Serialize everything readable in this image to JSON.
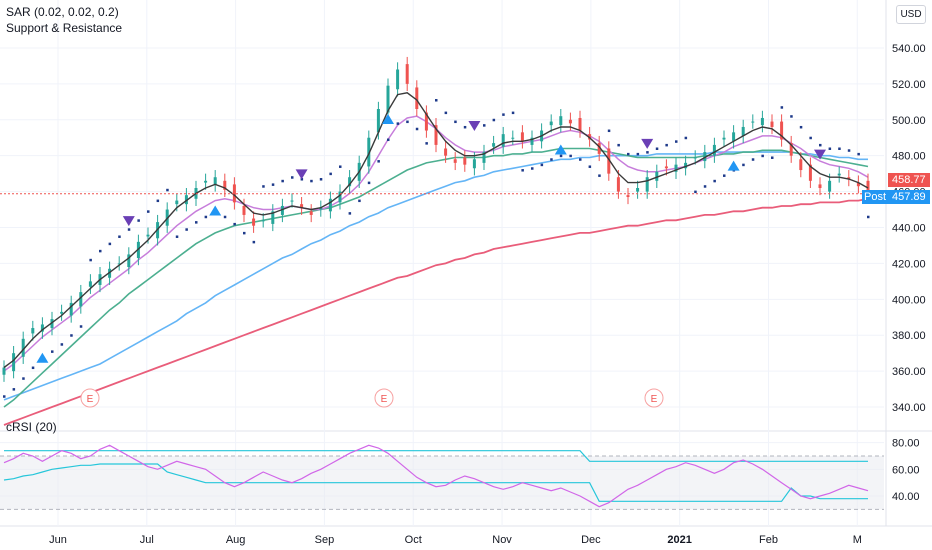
{
  "legend": {
    "sar": "SAR (0.02, 0.02, 0.2)",
    "sr": "Support & Resistance",
    "crsi": "cRSI (20)"
  },
  "currency": "USD",
  "price_tags": {
    "last": "458.77",
    "post_label": "Post",
    "post": "457.89"
  },
  "earnings_marker": "E",
  "colors": {
    "up": "#26a69a",
    "down": "#ef5350",
    "sar": "#1e3a8a",
    "ma_fast": "#3a3a3a",
    "ma_purple": "#c77ddb",
    "ma_green": "#4caf90",
    "ma_blue": "#64b5f6",
    "ma_red": "#e95d7a",
    "marker_down": "#6a3fb5",
    "marker_up": "#2196f3",
    "crsi_line": "#d166e8",
    "crsi_band": "#26c6da",
    "grid": "#f0f3fa",
    "axis_text": "#131722"
  },
  "chart_data": [
    {
      "type": "candlestick",
      "title": "",
      "ylim": [
        330,
        550
      ],
      "y_ticks": [
        "540.00",
        "520.00",
        "500.00",
        "480.00",
        "460.00",
        "440.00",
        "420.00",
        "400.00",
        "380.00",
        "360.00",
        "340.00"
      ],
      "x_ticks": [
        "Jun",
        "Jul",
        "Aug",
        "Sep",
        "Oct",
        "Nov",
        "Dec",
        "2021",
        "Feb",
        "M"
      ],
      "grid": true,
      "last_price": 458.77,
      "post_price": 457.89,
      "close_series": [
        362,
        370,
        378,
        384,
        386,
        389,
        393,
        398,
        404,
        410,
        414,
        417,
        420,
        425,
        432,
        436,
        443,
        450,
        455,
        458,
        462,
        466,
        468,
        461,
        454,
        447,
        441,
        444,
        449,
        452,
        455,
        451,
        447,
        451,
        456,
        460,
        468,
        476,
        490,
        506,
        519,
        528,
        520,
        506,
        494,
        486,
        480,
        476,
        475,
        478,
        482,
        487,
        492,
        490,
        488,
        490,
        494,
        499,
        502,
        498,
        494,
        489,
        481,
        470,
        460,
        457,
        462,
        468,
        471,
        473,
        475,
        476,
        479,
        482,
        486,
        490,
        493,
        496,
        499,
        501,
        496,
        489,
        480,
        472,
        466,
        462,
        466,
        470,
        467,
        463,
        459
      ],
      "sma_fast": [
        362,
        366,
        372,
        378,
        383,
        387,
        391,
        396,
        401,
        406,
        411,
        415,
        419,
        423,
        428,
        433,
        439,
        445,
        451,
        455,
        459,
        462,
        464,
        462,
        458,
        453,
        448,
        447,
        448,
        450,
        452,
        451,
        450,
        451,
        454,
        458,
        464,
        471,
        481,
        493,
        505,
        514,
        515,
        511,
        503,
        495,
        488,
        483,
        480,
        480,
        481,
        484,
        487,
        488,
        488,
        489,
        491,
        494,
        496,
        496,
        494,
        490,
        485,
        478,
        470,
        465,
        465,
        466,
        468,
        470,
        472,
        474,
        476,
        479,
        482,
        485,
        488,
        491,
        494,
        496,
        495,
        491,
        486,
        480,
        474,
        470,
        468,
        468,
        467,
        465,
        462
      ],
      "sma_purple": [
        360,
        364,
        369,
        374,
        379,
        383,
        387,
        391,
        396,
        401,
        405,
        409,
        413,
        417,
        422,
        426,
        431,
        436,
        441,
        445,
        449,
        452,
        455,
        456,
        455,
        453,
        451,
        450,
        450,
        451,
        452,
        451,
        450,
        450,
        452,
        455,
        459,
        464,
        471,
        480,
        489,
        497,
        501,
        502,
        499,
        495,
        490,
        486,
        483,
        482,
        482,
        483,
        485,
        486,
        487,
        488,
        489,
        491,
        493,
        494,
        493,
        491,
        488,
        483,
        478,
        474,
        472,
        471,
        471,
        472,
        473,
        474,
        476,
        478,
        480,
        482,
        485,
        487,
        489,
        491,
        491,
        490,
        487,
        484,
        480,
        477,
        475,
        474,
        473,
        471,
        468
      ],
      "sma_green": [
        340,
        344,
        349,
        354,
        359,
        364,
        369,
        374,
        379,
        384,
        389,
        394,
        398,
        403,
        407,
        411,
        415,
        419,
        423,
        427,
        431,
        434,
        437,
        439,
        441,
        442,
        443,
        444,
        445,
        446,
        447,
        448,
        449,
        450,
        451,
        453,
        455,
        457,
        460,
        463,
        466,
        469,
        472,
        474,
        476,
        477,
        478,
        479,
        479,
        479,
        479,
        480,
        480,
        481,
        481,
        482,
        482,
        483,
        484,
        484,
        484,
        484,
        483,
        482,
        481,
        480,
        479,
        479,
        479,
        479,
        479,
        479,
        479,
        480,
        480,
        481,
        481,
        482,
        482,
        483,
        483,
        483,
        482,
        481,
        480,
        479,
        478,
        477,
        476,
        475,
        474
      ],
      "sma_blue": [
        344,
        346,
        348,
        350,
        352,
        354,
        356,
        358,
        360,
        362,
        364,
        367,
        370,
        373,
        376,
        379,
        382,
        385,
        388,
        392,
        395,
        398,
        402,
        405,
        408,
        411,
        414,
        417,
        420,
        423,
        425,
        428,
        431,
        433,
        436,
        438,
        441,
        443,
        446,
        448,
        451,
        453,
        455,
        457,
        459,
        461,
        463,
        465,
        466,
        468,
        469,
        471,
        472,
        473,
        474,
        475,
        476,
        477,
        478,
        478,
        479,
        479,
        480,
        480,
        480,
        480,
        480,
        480,
        481,
        481,
        481,
        481,
        481,
        481,
        482,
        482,
        482,
        482,
        482,
        482,
        482,
        482,
        482,
        481,
        481,
        480,
        480,
        479,
        479,
        478,
        478
      ],
      "sma_red": [
        330,
        332,
        334,
        336,
        338,
        340,
        342,
        344,
        346,
        348,
        350,
        352,
        354,
        356,
        358,
        360,
        362,
        364,
        366,
        368,
        370,
        372,
        374,
        376,
        378,
        380,
        382,
        384,
        386,
        388,
        390,
        392,
        394,
        396,
        398,
        400,
        402,
        404,
        406,
        408,
        410,
        412,
        413,
        415,
        417,
        419,
        420,
        422,
        423,
        425,
        426,
        428,
        429,
        430,
        431,
        432,
        433,
        434,
        435,
        436,
        437,
        437,
        438,
        439,
        440,
        441,
        441,
        442,
        443,
        444,
        444,
        445,
        446,
        447,
        447,
        448,
        449,
        449,
        450,
        451,
        451,
        452,
        452,
        453,
        453,
        454,
        454,
        454,
        455,
        455,
        456
      ]
    },
    {
      "type": "line",
      "title": "cRSI (20)",
      "ylim": [
        25,
        85
      ],
      "y_ticks": [
        "80.00",
        "60.00",
        "40.00"
      ],
      "grid": true,
      "crsi": [
        65,
        68,
        72,
        70,
        66,
        70,
        74,
        72,
        68,
        70,
        75,
        78,
        74,
        70,
        66,
        62,
        60,
        63,
        66,
        64,
        62,
        60,
        55,
        50,
        47,
        50,
        54,
        58,
        55,
        52,
        50,
        53,
        57,
        60,
        64,
        68,
        72,
        75,
        78,
        76,
        72,
        66,
        60,
        54,
        50,
        47,
        48,
        52,
        55,
        53,
        50,
        47,
        45,
        47,
        50,
        48,
        46,
        44,
        46,
        43,
        40,
        36,
        32,
        35,
        40,
        45,
        48,
        52,
        56,
        60,
        62,
        65,
        63,
        60,
        57,
        60,
        65,
        67,
        64,
        60,
        55,
        50,
        45,
        40,
        38,
        40,
        42,
        45,
        48,
        46,
        44
      ],
      "upper_band": [
        74,
        74,
        74,
        74,
        74,
        74,
        74,
        74,
        74,
        74,
        74,
        74,
        74,
        74,
        74,
        74,
        74,
        74,
        74,
        74,
        74,
        74,
        74,
        74,
        74,
        74,
        74,
        74,
        74,
        74,
        74,
        74,
        74,
        74,
        74,
        74,
        74,
        74,
        74,
        74,
        74,
        74,
        74,
        74,
        74,
        74,
        74,
        74,
        74,
        74,
        74,
        74,
        74,
        74,
        74,
        74,
        74,
        74,
        74,
        74,
        74,
        66,
        66,
        66,
        66,
        66,
        66,
        66,
        66,
        66,
        66,
        66,
        66,
        66,
        66,
        66,
        66,
        66,
        66,
        66,
        66,
        66,
        66,
        66,
        66,
        66,
        66,
        66,
        66,
        66,
        66
      ],
      "lower_band": [
        52,
        53,
        55,
        56,
        58,
        60,
        61,
        62,
        63,
        63,
        64,
        64,
        64,
        64,
        64,
        64,
        64,
        58,
        56,
        54,
        52,
        50,
        50,
        50,
        50,
        50,
        50,
        50,
        50,
        50,
        50,
        50,
        50,
        50,
        50,
        50,
        50,
        50,
        50,
        50,
        50,
        50,
        50,
        50,
        50,
        50,
        50,
        50,
        50,
        50,
        50,
        50,
        50,
        50,
        50,
        50,
        50,
        50,
        50,
        50,
        50,
        50,
        36,
        36,
        36,
        36,
        36,
        36,
        36,
        36,
        36,
        36,
        36,
        36,
        36,
        36,
        36,
        36,
        36,
        36,
        36,
        36,
        46,
        40,
        40,
        38,
        38,
        38,
        38,
        38,
        38
      ]
    }
  ]
}
